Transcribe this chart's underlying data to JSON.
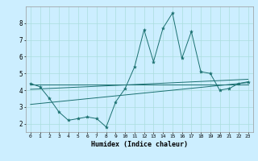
{
  "xlabel": "Humidex (Indice chaleur)",
  "background_color": "#cceeff",
  "grid_color": "#aadddd",
  "line_color": "#1a7070",
  "xlim": [
    -0.5,
    23.5
  ],
  "ylim": [
    1.5,
    9.0
  ],
  "xticks": [
    0,
    1,
    2,
    3,
    4,
    5,
    6,
    7,
    8,
    9,
    10,
    11,
    12,
    13,
    14,
    15,
    16,
    17,
    18,
    19,
    20,
    21,
    22,
    23
  ],
  "yticks": [
    2,
    3,
    4,
    5,
    6,
    7,
    8
  ],
  "main_x": [
    0,
    1,
    2,
    3,
    4,
    5,
    6,
    7,
    8,
    9,
    10,
    11,
    12,
    13,
    14,
    15,
    16,
    17,
    18,
    19,
    20,
    21,
    22,
    23
  ],
  "main_y": [
    4.4,
    4.2,
    3.5,
    2.7,
    2.2,
    2.3,
    2.4,
    2.3,
    1.8,
    3.3,
    4.1,
    5.4,
    7.6,
    5.7,
    7.7,
    8.6,
    5.9,
    7.5,
    5.1,
    5.0,
    4.0,
    4.1,
    4.4,
    4.5
  ],
  "trend1_x": [
    0,
    23
  ],
  "trend1_y": [
    4.35,
    4.35
  ],
  "trend2_x": [
    0,
    23
  ],
  "trend2_y": [
    4.05,
    4.65
  ],
  "trend3_x": [
    0,
    23
  ],
  "trend3_y": [
    3.15,
    4.45
  ]
}
